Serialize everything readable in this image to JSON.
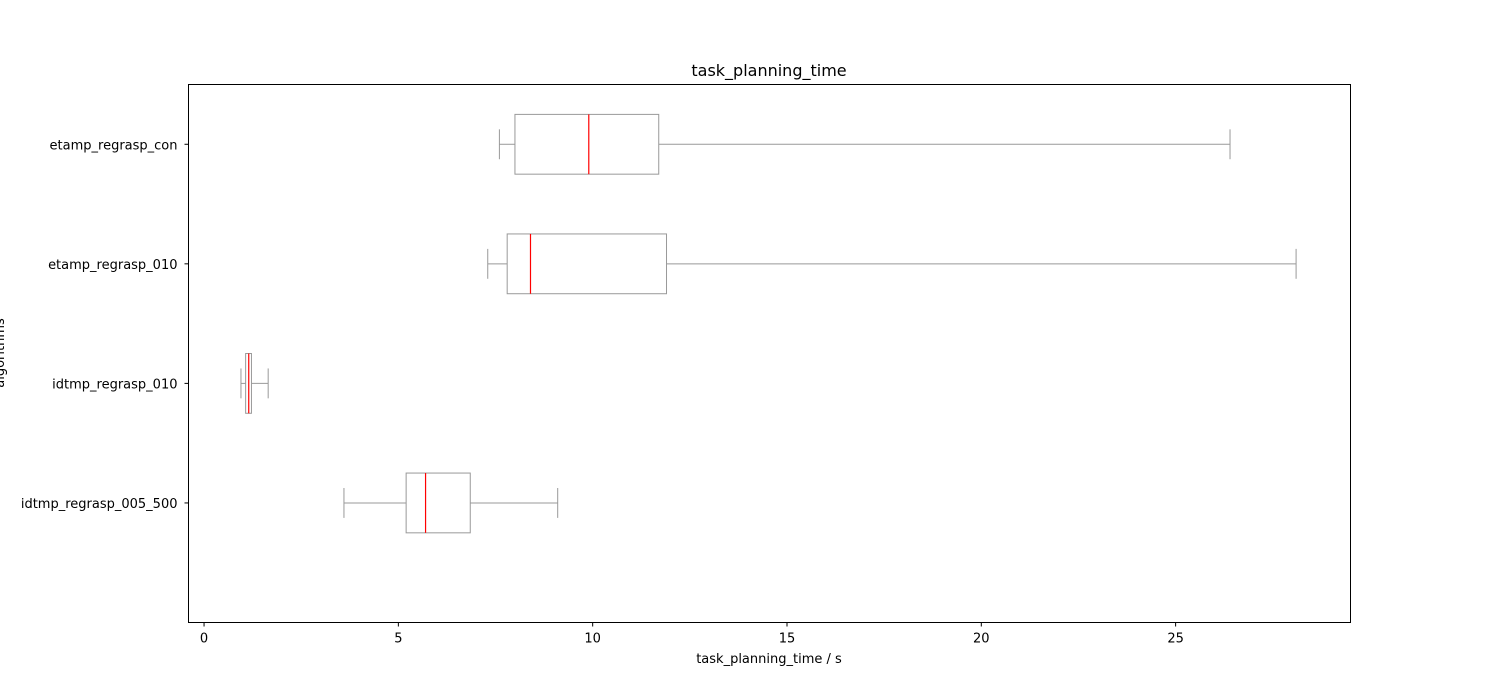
{
  "chart_data": {
    "type": "boxplot",
    "orientation": "horizontal",
    "title": "task_planning_time",
    "xlabel": "task_planning_time / s",
    "ylabel": "algorithms",
    "xlim": [
      -0.4,
      29.5
    ],
    "xticks": [
      0,
      5,
      10,
      15,
      20,
      25
    ],
    "grid": false,
    "colors": {
      "box": "#999999",
      "median": "#ff0000",
      "axes": "#000000"
    },
    "categories": [
      "etamp_regrasp_con",
      "etamp_regrasp_010",
      "idtmp_regrasp_010",
      "idtmp_regrasp_005_500"
    ],
    "boxes": [
      {
        "name": "etamp_regrasp_con",
        "whisker_low": 7.6,
        "q1": 8.0,
        "median": 9.9,
        "q3": 11.7,
        "whisker_high": 26.4
      },
      {
        "name": "etamp_regrasp_010",
        "whisker_low": 7.3,
        "q1": 7.8,
        "median": 8.4,
        "q3": 11.9,
        "whisker_high": 28.1
      },
      {
        "name": "idtmp_regrasp_010",
        "whisker_low": 0.95,
        "q1": 1.07,
        "median": 1.15,
        "q3": 1.22,
        "whisker_high": 1.65
      },
      {
        "name": "idtmp_regrasp_005_500",
        "whisker_low": 3.6,
        "q1": 5.2,
        "median": 5.7,
        "q3": 6.85,
        "whisker_high": 9.1
      }
    ]
  }
}
